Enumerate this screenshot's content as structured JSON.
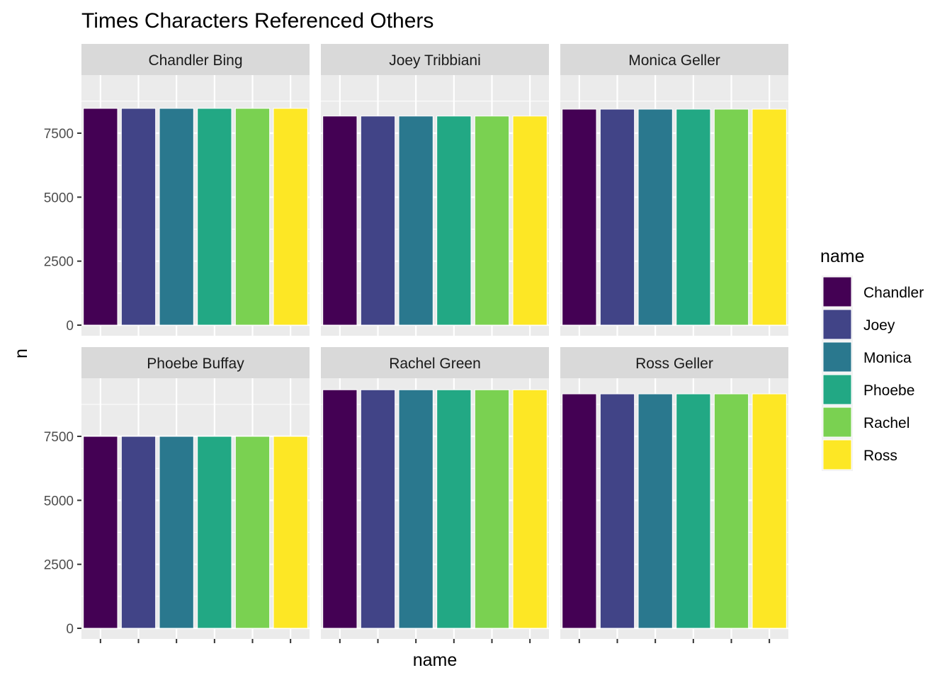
{
  "chart_data": {
    "type": "bar",
    "title": "Times Characters Referenced Others",
    "xlabel": "name",
    "ylabel": "n",
    "ylim": [
      0,
      9550
    ],
    "yticks": [
      0,
      2500,
      5000,
      7500
    ],
    "grid": true,
    "x_tick_labels_shown": false,
    "categories": [
      "Chandler",
      "Joey",
      "Monica",
      "Phoebe",
      "Rachel",
      "Ross"
    ],
    "colors": [
      "#440154",
      "#414487",
      "#2A788E",
      "#22A884",
      "#7AD151",
      "#FDE725"
    ],
    "legend": {
      "title": "name",
      "position": "right",
      "entries": [
        "Chandler",
        "Joey",
        "Monica",
        "Phoebe",
        "Rachel",
        "Ross"
      ]
    },
    "facets": [
      {
        "label": "Chandler Bing",
        "values": [
          8470,
          8470,
          8470,
          8470,
          8470,
          8470
        ]
      },
      {
        "label": "Joey Tribbiani",
        "values": [
          8170,
          8170,
          8170,
          8170,
          8170,
          8170
        ]
      },
      {
        "label": "Monica Geller",
        "values": [
          8440,
          8440,
          8440,
          8440,
          8440,
          8440
        ]
      },
      {
        "label": "Phoebe Buffay",
        "values": [
          7500,
          7500,
          7500,
          7500,
          7500,
          7500
        ]
      },
      {
        "label": "Rachel Green",
        "values": [
          9320,
          9320,
          9320,
          9320,
          9320,
          9320
        ]
      },
      {
        "label": "Ross Geller",
        "values": [
          9160,
          9160,
          9160,
          9160,
          9160,
          9160
        ]
      }
    ]
  }
}
